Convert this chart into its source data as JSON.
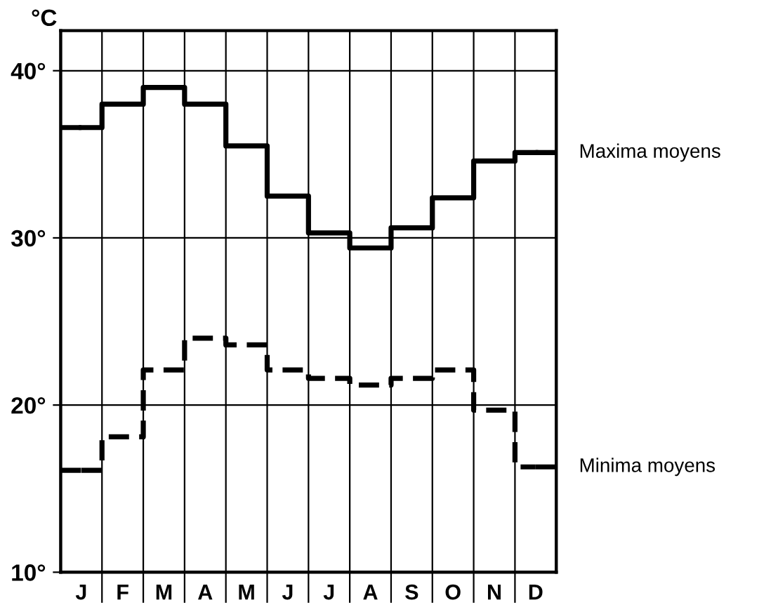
{
  "chart_data": {
    "type": "step",
    "ylabel": "°C",
    "categories": [
      "J",
      "F",
      "M",
      "A",
      "M",
      "J",
      "J",
      "A",
      "S",
      "O",
      "N",
      "D"
    ],
    "series": [
      {
        "name": "Maxima moyens",
        "color": "#000000",
        "line_style": "solid",
        "values": [
          36.6,
          38.0,
          39.0,
          38.0,
          35.5,
          32.5,
          30.3,
          29.4,
          30.6,
          32.4,
          34.6,
          35.1
        ]
      },
      {
        "name": "Minima moyens",
        "color": "#000000",
        "line_style": "dashed",
        "values": [
          16.1,
          18.1,
          22.1,
          24.0,
          23.6,
          22.1,
          21.6,
          21.2,
          21.6,
          22.1,
          19.7,
          16.3
        ]
      }
    ],
    "ylim": [
      10,
      42.4
    ],
    "yticks": [
      {
        "value": 10,
        "label": "10°"
      },
      {
        "value": 20,
        "label": "20°"
      },
      {
        "value": 30,
        "label": "30°"
      },
      {
        "value": 40,
        "label": "40°"
      }
    ],
    "grid": true,
    "legend": "right"
  }
}
